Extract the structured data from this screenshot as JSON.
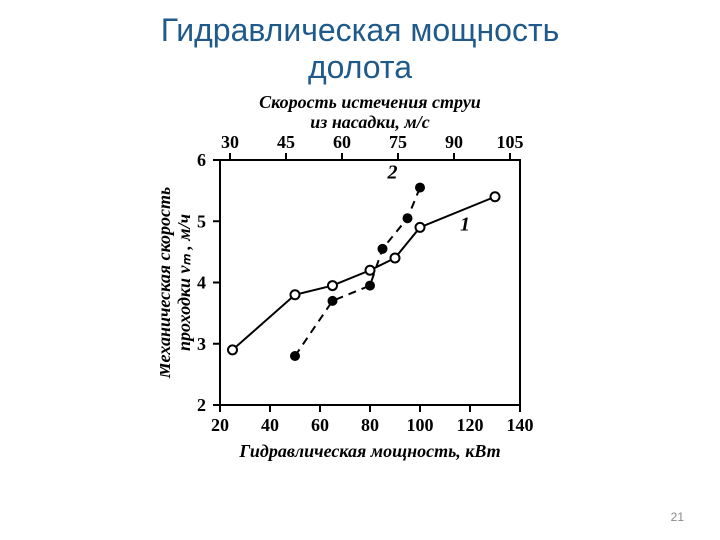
{
  "slide": {
    "title_line1": "Гидравлическая мощность",
    "title_line2": "долота",
    "title_color": "#1f5a8a",
    "title_fontsize": 32,
    "page_number": "21"
  },
  "chart": {
    "type": "line+scatter",
    "background_color": "#ffffff",
    "axis_line_width": 2,
    "axis_color": "#000000",
    "font_family_serif": "Times New Roman",
    "top_axis": {
      "title_line1": "Скорость истечения струи",
      "title_line2": "из насадки, м/с",
      "title_fontsize": 18,
      "ticks": [
        30,
        45,
        60,
        75,
        90,
        105
      ],
      "tick_fontsize": 18
    },
    "bottom_axis": {
      "title": "Гидравлическая мощность, кВт",
      "title_fontsize": 18,
      "xlim": [
        20,
        140
      ],
      "ticks": [
        20,
        40,
        60,
        80,
        100,
        120,
        140
      ],
      "tick_fontsize": 18
    },
    "left_axis": {
      "title_line1": "Механическая скорость",
      "title_line2": "проходки vₘ , м/ч",
      "title_fontsize": 18,
      "ylim": [
        2,
        6
      ],
      "ticks": [
        2,
        3,
        4,
        5,
        6
      ],
      "tick_fontsize": 18
    },
    "series": [
      {
        "name": "1",
        "label": "1",
        "label_fontsize": 20,
        "label_xy": [
          118,
          4.85
        ],
        "line_color": "#000000",
        "line_width": 2,
        "line_dash": "solid",
        "marker": "circle-open",
        "marker_size": 9,
        "marker_stroke": "#000000",
        "marker_fill": "#ffffff",
        "points": [
          {
            "x": 25,
            "y": 2.9
          },
          {
            "x": 50,
            "y": 3.8
          },
          {
            "x": 65,
            "y": 3.95
          },
          {
            "x": 80,
            "y": 4.2
          },
          {
            "x": 90,
            "y": 4.4
          },
          {
            "x": 100,
            "y": 4.9
          },
          {
            "x": 130,
            "y": 5.4
          }
        ]
      },
      {
        "name": "2",
        "label": "2",
        "label_fontsize": 20,
        "label_xy": [
          89,
          5.7
        ],
        "line_color": "#000000",
        "line_width": 2,
        "line_dash": "dashed",
        "marker": "circle-filled",
        "marker_size": 8,
        "marker_stroke": "#000000",
        "marker_fill": "#000000",
        "points": [
          {
            "x": 50,
            "y": 2.8
          },
          {
            "x": 65,
            "y": 3.7
          },
          {
            "x": 80,
            "y": 3.95
          },
          {
            "x": 85,
            "y": 4.55
          },
          {
            "x": 95,
            "y": 5.05
          },
          {
            "x": 100,
            "y": 5.55
          }
        ]
      }
    ]
  }
}
